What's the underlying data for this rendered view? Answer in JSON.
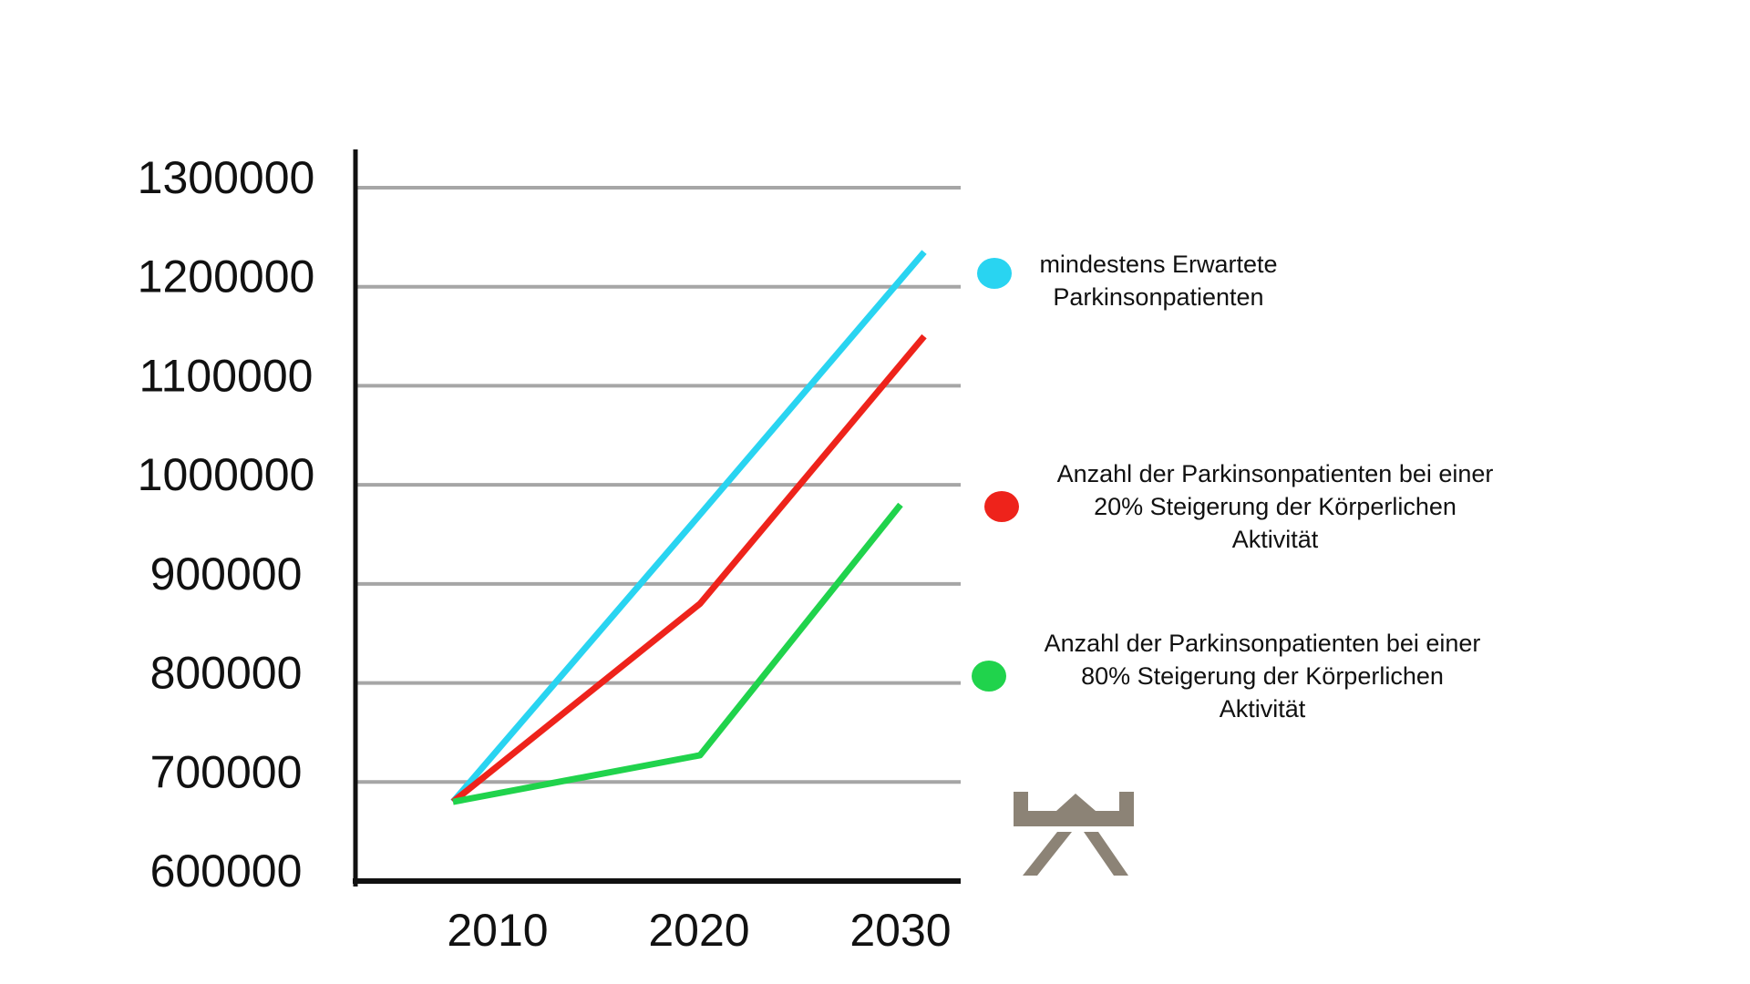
{
  "chart_data": {
    "type": "line",
    "title": "",
    "x_labels": [
      "2010",
      "2020",
      "2030"
    ],
    "y_tick_labels": [
      "1300000",
      "1200000",
      "1100000",
      "1000000",
      "900000",
      "800000",
      "700000",
      "600000"
    ],
    "ylim": [
      600000,
      1300000
    ],
    "y_tick_step": 100000,
    "grid": true,
    "legend_position": "right",
    "series": [
      {
        "name": "mindestens Erwartete Parkinsonpatienten",
        "label_lines": [
          "mindestens Erwartete",
          "Parkinsonpatienten"
        ],
        "color": "#29d4f1",
        "values": [
          680000,
          970000,
          1235000
        ]
      },
      {
        "name": "Anzahl der Parkinsonpatienten bei einer 20% Steigerung der Körperlichen Aktivität",
        "label_lines": [
          "Anzahl der Parkinsonpatienten bei einer",
          "20% Steigerung der Körperlichen",
          "Aktivität"
        ],
        "color": "#ee231b",
        "values": [
          680000,
          880000,
          1150000
        ]
      },
      {
        "name": "Anzahl der Parkinsonpatienten bei einer 80% Steigerung der Körperlichen Aktivität",
        "label_lines": [
          "Anzahl der Parkinsonpatienten bei einer",
          "80% Steigerung der Körperlichen",
          "Aktivität"
        ],
        "color": "#20d34c",
        "values": [
          680000,
          727000,
          980000
        ]
      }
    ]
  },
  "logo": {
    "name": "picnic-table-logo",
    "color": "#8c8376"
  },
  "colors": {
    "background": "#ffffff",
    "grid": "#a6a6a6",
    "axis": "#111111",
    "text": "#111111"
  }
}
